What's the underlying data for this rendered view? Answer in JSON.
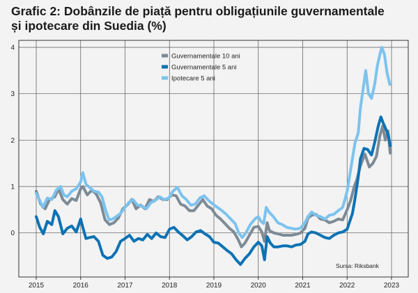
{
  "title_line1": "Grafic 2: Dobânzile de piață pentru obligațiunile guvernamentale",
  "title_line2": "și ipotecare din Suedia (%)",
  "source": "Sursa: Riksbank",
  "chart_data": {
    "type": "line",
    "title": "Grafic 2: Dobânzile de piață pentru obligațiunile guvernamentale și ipotecare din Suedia (%)",
    "xlabel": "",
    "ylabel": "",
    "xlim": [
      2015,
      2023.05
    ],
    "ylim": [
      -0.95,
      4.15
    ],
    "xticks": [
      2015,
      2016,
      2017,
      2018,
      2019,
      2020,
      2021,
      2022,
      2023
    ],
    "xtick_labels": [
      "2015",
      "2016",
      "2017",
      "2018",
      "2019",
      "2020",
      "2021",
      "2022",
      "2023"
    ],
    "yticks": [
      0,
      1,
      2,
      3,
      4
    ],
    "ytick_labels": [
      "0",
      "1",
      "2",
      "3",
      "4"
    ],
    "grid": true,
    "legend_position": "top-center",
    "series": [
      {
        "name": "Guvernamentale 10 ani",
        "color": "#7d8b96",
        "points": [
          [
            2015.0,
            0.9
          ],
          [
            2015.1,
            0.62
          ],
          [
            2015.2,
            0.52
          ],
          [
            2015.3,
            0.72
          ],
          [
            2015.42,
            0.78
          ],
          [
            2015.5,
            0.95
          ],
          [
            2015.6,
            0.72
          ],
          [
            2015.7,
            0.62
          ],
          [
            2015.8,
            0.74
          ],
          [
            2015.9,
            0.7
          ],
          [
            2016.0,
            0.95
          ],
          [
            2016.05,
            1.0
          ],
          [
            2016.15,
            0.82
          ],
          [
            2016.25,
            0.92
          ],
          [
            2016.35,
            0.84
          ],
          [
            2016.45,
            0.65
          ],
          [
            2016.55,
            0.28
          ],
          [
            2016.65,
            0.18
          ],
          [
            2016.75,
            0.22
          ],
          [
            2016.85,
            0.32
          ],
          [
            2016.95,
            0.52
          ],
          [
            2017.05,
            0.6
          ],
          [
            2017.15,
            0.72
          ],
          [
            2017.25,
            0.52
          ],
          [
            2017.35,
            0.6
          ],
          [
            2017.45,
            0.52
          ],
          [
            2017.55,
            0.72
          ],
          [
            2017.65,
            0.68
          ],
          [
            2017.75,
            0.78
          ],
          [
            2017.85,
            0.72
          ],
          [
            2017.95,
            0.72
          ],
          [
            2018.05,
            0.82
          ],
          [
            2018.15,
            0.8
          ],
          [
            2018.25,
            0.62
          ],
          [
            2018.35,
            0.58
          ],
          [
            2018.45,
            0.48
          ],
          [
            2018.55,
            0.48
          ],
          [
            2018.65,
            0.6
          ],
          [
            2018.75,
            0.72
          ],
          [
            2018.85,
            0.58
          ],
          [
            2018.95,
            0.52
          ],
          [
            2019.05,
            0.38
          ],
          [
            2019.15,
            0.3
          ],
          [
            2019.25,
            0.2
          ],
          [
            2019.35,
            0.1
          ],
          [
            2019.45,
            0.02
          ],
          [
            2019.55,
            -0.15
          ],
          [
            2019.62,
            -0.3
          ],
          [
            2019.7,
            -0.22
          ],
          [
            2019.8,
            -0.05
          ],
          [
            2019.9,
            0.12
          ],
          [
            2020.0,
            0.14
          ],
          [
            2020.08,
            0.02
          ],
          [
            2020.14,
            -0.18
          ],
          [
            2020.2,
            0.22
          ],
          [
            2020.25,
            0.05
          ],
          [
            2020.35,
            0.0
          ],
          [
            2020.45,
            -0.02
          ],
          [
            2020.55,
            -0.05
          ],
          [
            2020.65,
            -0.05
          ],
          [
            2020.75,
            -0.05
          ],
          [
            2020.85,
            -0.03
          ],
          [
            2020.95,
            0.0
          ],
          [
            2021.05,
            0.1
          ],
          [
            2021.12,
            0.32
          ],
          [
            2021.2,
            0.38
          ],
          [
            2021.3,
            0.4
          ],
          [
            2021.4,
            0.3
          ],
          [
            2021.5,
            0.28
          ],
          [
            2021.6,
            0.22
          ],
          [
            2021.7,
            0.25
          ],
          [
            2021.8,
            0.3
          ],
          [
            2021.9,
            0.28
          ],
          [
            2022.0,
            0.5
          ],
          [
            2022.08,
            0.7
          ],
          [
            2022.16,
            1.0
          ],
          [
            2022.22,
            1.15
          ],
          [
            2022.3,
            1.45
          ],
          [
            2022.4,
            1.7
          ],
          [
            2022.5,
            1.42
          ],
          [
            2022.58,
            1.5
          ],
          [
            2022.66,
            1.65
          ],
          [
            2022.74,
            2.1
          ],
          [
            2022.8,
            2.3
          ],
          [
            2022.86,
            2.0
          ],
          [
            2022.92,
            2.2
          ],
          [
            2022.97,
            1.72
          ]
        ]
      },
      {
        "name": "Guvernamentale 5 ani",
        "color": "#0d72b3",
        "points": [
          [
            2015.0,
            0.35
          ],
          [
            2015.08,
            0.12
          ],
          [
            2015.16,
            -0.02
          ],
          [
            2015.25,
            0.25
          ],
          [
            2015.35,
            0.18
          ],
          [
            2015.42,
            0.48
          ],
          [
            2015.5,
            0.35
          ],
          [
            2015.6,
            -0.02
          ],
          [
            2015.7,
            0.1
          ],
          [
            2015.8,
            0.15
          ],
          [
            2015.9,
            0.02
          ],
          [
            2016.0,
            0.3
          ],
          [
            2016.05,
            0.12
          ],
          [
            2016.12,
            -0.12
          ],
          [
            2016.2,
            -0.1
          ],
          [
            2016.3,
            -0.08
          ],
          [
            2016.4,
            -0.18
          ],
          [
            2016.5,
            -0.48
          ],
          [
            2016.6,
            -0.55
          ],
          [
            2016.7,
            -0.52
          ],
          [
            2016.8,
            -0.4
          ],
          [
            2016.9,
            -0.18
          ],
          [
            2017.0,
            -0.12
          ],
          [
            2017.1,
            -0.05
          ],
          [
            2017.2,
            -0.18
          ],
          [
            2017.3,
            -0.12
          ],
          [
            2017.4,
            -0.15
          ],
          [
            2017.5,
            -0.03
          ],
          [
            2017.6,
            -0.12
          ],
          [
            2017.7,
            0.0
          ],
          [
            2017.8,
            -0.08
          ],
          [
            2017.9,
            -0.1
          ],
          [
            2018.0,
            0.08
          ],
          [
            2018.1,
            0.12
          ],
          [
            2018.2,
            0.02
          ],
          [
            2018.3,
            -0.06
          ],
          [
            2018.4,
            -0.15
          ],
          [
            2018.5,
            -0.08
          ],
          [
            2018.6,
            0.02
          ],
          [
            2018.7,
            0.05
          ],
          [
            2018.8,
            -0.02
          ],
          [
            2018.9,
            -0.08
          ],
          [
            2019.0,
            -0.2
          ],
          [
            2019.1,
            -0.22
          ],
          [
            2019.2,
            -0.3
          ],
          [
            2019.3,
            -0.38
          ],
          [
            2019.4,
            -0.45
          ],
          [
            2019.5,
            -0.58
          ],
          [
            2019.6,
            -0.68
          ],
          [
            2019.7,
            -0.55
          ],
          [
            2019.8,
            -0.45
          ],
          [
            2019.9,
            -0.3
          ],
          [
            2020.0,
            -0.2
          ],
          [
            2020.08,
            -0.28
          ],
          [
            2020.14,
            -0.58
          ],
          [
            2020.2,
            -0.08
          ],
          [
            2020.27,
            -0.22
          ],
          [
            2020.35,
            -0.3
          ],
          [
            2020.45,
            -0.3
          ],
          [
            2020.55,
            -0.28
          ],
          [
            2020.65,
            -0.28
          ],
          [
            2020.75,
            -0.3
          ],
          [
            2020.85,
            -0.26
          ],
          [
            2020.95,
            -0.25
          ],
          [
            2021.05,
            -0.18
          ],
          [
            2021.12,
            -0.02
          ],
          [
            2021.2,
            0.02
          ],
          [
            2021.3,
            0.0
          ],
          [
            2021.4,
            -0.05
          ],
          [
            2021.5,
            -0.1
          ],
          [
            2021.6,
            -0.12
          ],
          [
            2021.7,
            -0.05
          ],
          [
            2021.8,
            0.0
          ],
          [
            2021.9,
            0.02
          ],
          [
            2022.0,
            0.08
          ],
          [
            2022.06,
            0.25
          ],
          [
            2022.12,
            0.42
          ],
          [
            2022.18,
            0.75
          ],
          [
            2022.25,
            1.2
          ],
          [
            2022.3,
            1.6
          ],
          [
            2022.38,
            1.82
          ],
          [
            2022.46,
            1.8
          ],
          [
            2022.55,
            1.68
          ],
          [
            2022.62,
            1.95
          ],
          [
            2022.7,
            2.3
          ],
          [
            2022.76,
            2.5
          ],
          [
            2022.82,
            2.35
          ],
          [
            2022.88,
            2.22
          ],
          [
            2022.93,
            2.1
          ],
          [
            2022.97,
            1.88
          ]
        ]
      },
      {
        "name": "Ipotecare 5 ani",
        "color": "#7cc3ee",
        "points": [
          [
            2015.0,
            0.85
          ],
          [
            2015.08,
            0.7
          ],
          [
            2015.15,
            0.55
          ],
          [
            2015.25,
            0.75
          ],
          [
            2015.35,
            0.72
          ],
          [
            2015.45,
            0.92
          ],
          [
            2015.55,
            1.0
          ],
          [
            2015.62,
            0.82
          ],
          [
            2015.7,
            0.78
          ],
          [
            2015.8,
            0.9
          ],
          [
            2015.9,
            0.95
          ],
          [
            2016.0,
            1.1
          ],
          [
            2016.05,
            1.3
          ],
          [
            2016.12,
            1.05
          ],
          [
            2016.2,
            0.98
          ],
          [
            2016.3,
            0.9
          ],
          [
            2016.4,
            0.88
          ],
          [
            2016.48,
            0.78
          ],
          [
            2016.56,
            0.5
          ],
          [
            2016.64,
            0.28
          ],
          [
            2016.72,
            0.3
          ],
          [
            2016.8,
            0.35
          ],
          [
            2016.9,
            0.42
          ],
          [
            2017.0,
            0.55
          ],
          [
            2017.08,
            0.65
          ],
          [
            2017.18,
            0.72
          ],
          [
            2017.28,
            0.6
          ],
          [
            2017.38,
            0.58
          ],
          [
            2017.48,
            0.52
          ],
          [
            2017.58,
            0.65
          ],
          [
            2017.68,
            0.7
          ],
          [
            2017.78,
            0.78
          ],
          [
            2017.88,
            0.72
          ],
          [
            2017.98,
            0.75
          ],
          [
            2018.08,
            0.9
          ],
          [
            2018.18,
            0.98
          ],
          [
            2018.28,
            0.8
          ],
          [
            2018.38,
            0.72
          ],
          [
            2018.48,
            0.6
          ],
          [
            2018.58,
            0.62
          ],
          [
            2018.68,
            0.75
          ],
          [
            2018.78,
            0.8
          ],
          [
            2018.88,
            0.7
          ],
          [
            2018.98,
            0.62
          ],
          [
            2019.08,
            0.55
          ],
          [
            2019.18,
            0.48
          ],
          [
            2019.28,
            0.4
          ],
          [
            2019.38,
            0.3
          ],
          [
            2019.48,
            0.2
          ],
          [
            2019.56,
            0.0
          ],
          [
            2019.64,
            -0.1
          ],
          [
            2019.72,
            0.0
          ],
          [
            2019.82,
            0.18
          ],
          [
            2019.92,
            0.3
          ],
          [
            2020.0,
            0.35
          ],
          [
            2020.06,
            0.25
          ],
          [
            2020.12,
            0.2
          ],
          [
            2020.18,
            0.55
          ],
          [
            2020.24,
            0.45
          ],
          [
            2020.34,
            0.35
          ],
          [
            2020.44,
            0.22
          ],
          [
            2020.54,
            0.18
          ],
          [
            2020.64,
            0.12
          ],
          [
            2020.74,
            0.1
          ],
          [
            2020.84,
            0.08
          ],
          [
            2020.94,
            0.1
          ],
          [
            2021.04,
            0.2
          ],
          [
            2021.12,
            0.35
          ],
          [
            2021.2,
            0.45
          ],
          [
            2021.3,
            0.38
          ],
          [
            2021.4,
            0.35
          ],
          [
            2021.5,
            0.3
          ],
          [
            2021.6,
            0.38
          ],
          [
            2021.7,
            0.4
          ],
          [
            2021.8,
            0.48
          ],
          [
            2021.9,
            0.55
          ],
          [
            2022.0,
            0.9
          ],
          [
            2022.06,
            1.25
          ],
          [
            2022.12,
            1.6
          ],
          [
            2022.18,
            1.95
          ],
          [
            2022.25,
            2.15
          ],
          [
            2022.3,
            2.7
          ],
          [
            2022.36,
            3.1
          ],
          [
            2022.42,
            3.5
          ],
          [
            2022.48,
            3.0
          ],
          [
            2022.55,
            2.9
          ],
          [
            2022.62,
            3.2
          ],
          [
            2022.68,
            3.6
          ],
          [
            2022.74,
            3.85
          ],
          [
            2022.78,
            4.0
          ],
          [
            2022.84,
            3.85
          ],
          [
            2022.9,
            3.45
          ],
          [
            2022.96,
            3.2
          ]
        ]
      }
    ]
  }
}
